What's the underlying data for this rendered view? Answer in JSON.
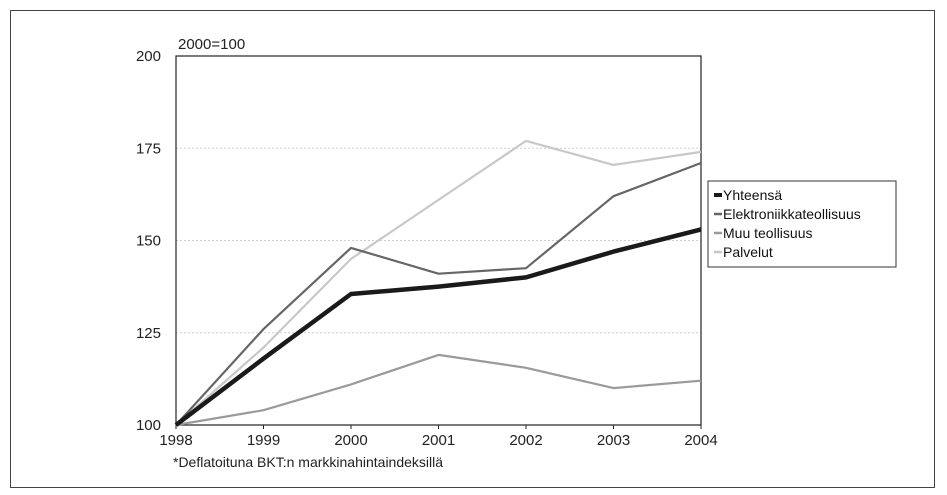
{
  "chart_data": {
    "type": "line",
    "unit_label": "2000=100",
    "footnote": "*Deflatoituna BKT:n markkinahintaindeksillä",
    "x": [
      "1998",
      "1999",
      "2000",
      "2001",
      "2002",
      "2003",
      "2004"
    ],
    "y_ticks": [
      "100",
      "125",
      "150",
      "175",
      "200"
    ],
    "ylim": [
      100,
      200
    ],
    "grid": true,
    "legend_placement": "right",
    "series": [
      {
        "name": "Yhteensä",
        "color": "#1a1a1a",
        "values": [
          100,
          118,
          135.5,
          137.5,
          140,
          147,
          153
        ]
      },
      {
        "name": "Elektroniikkateollisuus",
        "color": "#666666",
        "values": [
          100,
          126,
          148,
          141,
          142.5,
          162,
          171
        ]
      },
      {
        "name": "Muu teollisuus",
        "color": "#9a9a9a",
        "values": [
          100,
          104,
          111,
          119,
          115.5,
          110,
          112
        ]
      },
      {
        "name": "Palvelut",
        "color": "#c8c8c8",
        "values": [
          100,
          121,
          145,
          161,
          177,
          170.5,
          174
        ]
      }
    ]
  }
}
